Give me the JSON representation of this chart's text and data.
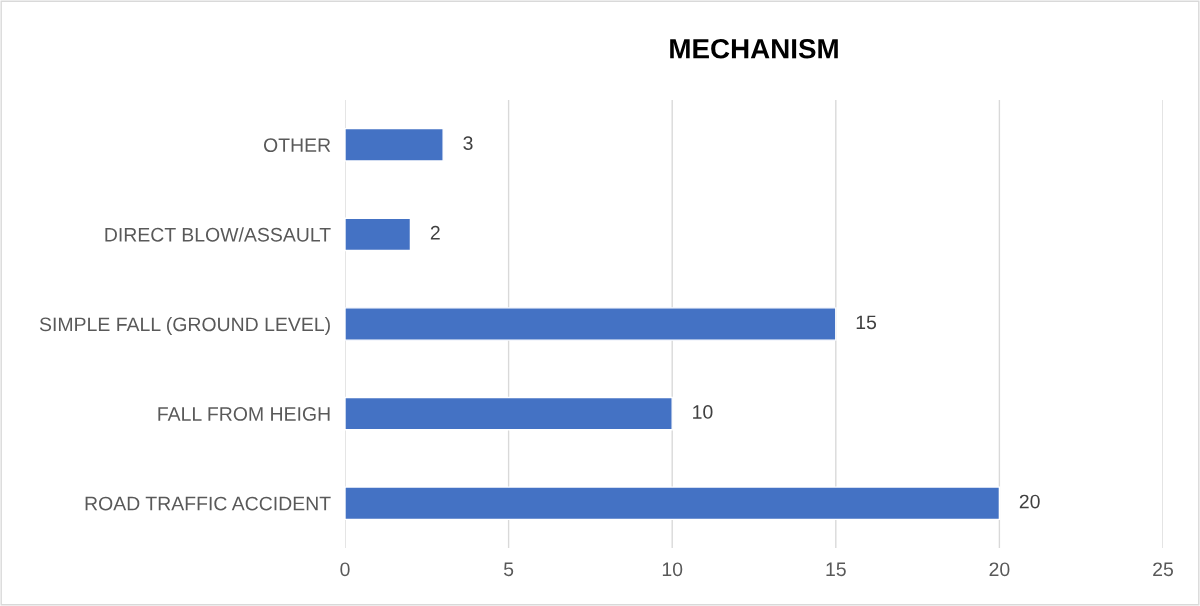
{
  "chart_data": {
    "type": "bar",
    "title": "MECHANISM",
    "orientation": "horizontal",
    "categories": [
      "OTHER",
      "DIRECT BLOW/ASSAULT",
      "SIMPLE FALL (GROUND LEVEL)",
      "FALL FROM HEIGH",
      "ROAD TRAFFIC ACCIDENT"
    ],
    "values": [
      3,
      2,
      15,
      10,
      20
    ],
    "color": "#4472c4",
    "xlim": [
      0,
      25
    ],
    "xticks": [
      0,
      5,
      10,
      15,
      20,
      25
    ],
    "grid": "x",
    "data_labels": true
  }
}
